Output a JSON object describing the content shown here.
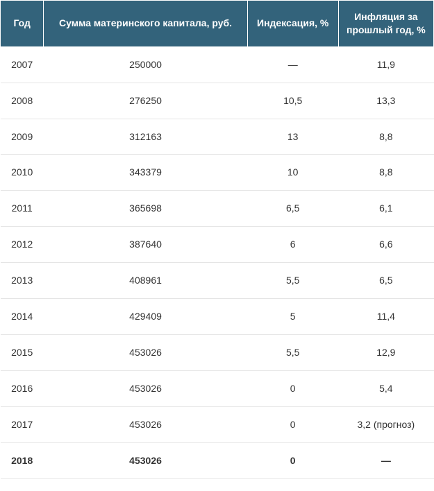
{
  "table": {
    "type": "table",
    "header_bg": "#33637b",
    "header_fg": "#ffffff",
    "row_border_color": "#e5e5e5",
    "font_family": "Arial",
    "header_fontsize": 14,
    "cell_fontsize": 14,
    "columns": [
      {
        "key": "year",
        "label": "Год",
        "width": "10%"
      },
      {
        "key": "amount",
        "label": "Сумма материнского капитала, руб.",
        "width": "47%"
      },
      {
        "key": "indexation",
        "label": "Индексация, %",
        "width": "21%"
      },
      {
        "key": "inflation",
        "label": "Инфляция за прошлый год, %",
        "width": "22%"
      }
    ],
    "rows": [
      {
        "year": "2007",
        "amount": "250000",
        "indexation": "—",
        "inflation": "11,9",
        "bold": false
      },
      {
        "year": "2008",
        "amount": "276250",
        "indexation": "10,5",
        "inflation": "13,3",
        "bold": false
      },
      {
        "year": "2009",
        "amount": "312163",
        "indexation": "13",
        "inflation": "8,8",
        "bold": false
      },
      {
        "year": "2010",
        "amount": "343379",
        "indexation": "10",
        "inflation": "8,8",
        "bold": false
      },
      {
        "year": "2011",
        "amount": "365698",
        "indexation": "6,5",
        "inflation": "6,1",
        "bold": false
      },
      {
        "year": "2012",
        "amount": "387640",
        "indexation": "6",
        "inflation": "6,6",
        "bold": false
      },
      {
        "year": "2013",
        "amount": "408961",
        "indexation": "5,5",
        "inflation": "6,5",
        "bold": false
      },
      {
        "year": "2014",
        "amount": "429409",
        "indexation": "5",
        "inflation": "11,4",
        "bold": false
      },
      {
        "year": "2015",
        "amount": "453026",
        "indexation": "5,5",
        "inflation": "12,9",
        "bold": false
      },
      {
        "year": "2016",
        "amount": "453026",
        "indexation": "0",
        "inflation": "5,4",
        "bold": false
      },
      {
        "year": "2017",
        "amount": "453026",
        "indexation": "0",
        "inflation": "3,2 (прогноз)",
        "bold": false
      },
      {
        "year": "2018",
        "amount": "453026",
        "indexation": "0",
        "inflation": "—",
        "bold": true
      }
    ]
  }
}
